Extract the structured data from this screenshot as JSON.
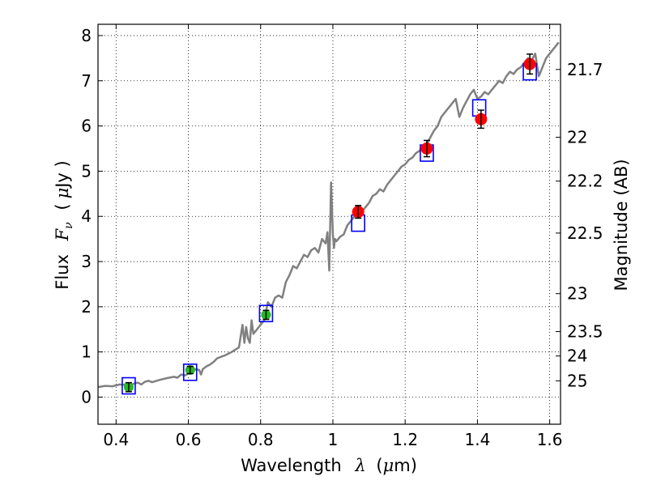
{
  "chart_data": {
    "type": "scatter",
    "xlabel": "Wavelength",
    "xlabel_symbol": "λ",
    "xlabel_unit_prefix": "(",
    "xlabel_unit_mu": "μ",
    "xlabel_unit_suffix": "m)",
    "ylabel": "Flux",
    "ylabel_symbol": "F",
    "ylabel_symbol_sub": "ν",
    "ylabel_unit_prefix": "(",
    "ylabel_unit_mu": "μ",
    "ylabel_unit_suffix": "Jy )",
    "y2label": "Magnitude (AB)",
    "xlim": [
      0.35,
      1.63
    ],
    "ylim": [
      -0.6,
      8.25
    ],
    "x_ticks": [
      0.4,
      0.6,
      0.8,
      1.0,
      1.2,
      1.4,
      1.6
    ],
    "x_tick_labels": [
      "0.4",
      "0.6",
      "0.8",
      "1",
      "1.2",
      "1.4",
      "1.6"
    ],
    "y_ticks": [
      0,
      1,
      2,
      3,
      4,
      5,
      6,
      7,
      8
    ],
    "y_tick_labels": [
      "0",
      "1",
      "2",
      "3",
      "4",
      "5",
      "6",
      "7",
      "8"
    ],
    "y2_ticks": [
      {
        "label": "21.7",
        "flux": 7.25
      },
      {
        "label": "22",
        "flux": 5.75
      },
      {
        "label": "22.2",
        "flux": 4.78
      },
      {
        "label": "22.5",
        "flux": 3.63
      },
      {
        "label": "23",
        "flux": 2.29
      },
      {
        "label": "23.5",
        "flux": 1.45
      },
      {
        "label": "24",
        "flux": 0.91
      },
      {
        "label": "25",
        "flux": 0.36
      }
    ],
    "grid": true,
    "colors": {
      "spectrum": "#808080",
      "model_box": "#0000ff",
      "optical_point": "#22bb22",
      "nir_point": "#ff0000",
      "errorbar": "#000000"
    },
    "series": [
      {
        "kind": "line",
        "x": [
          0.35,
          0.37,
          0.39,
          0.41,
          0.42,
          0.43,
          0.44,
          0.45,
          0.46,
          0.47,
          0.48,
          0.49,
          0.5,
          0.52,
          0.54,
          0.56,
          0.57,
          0.58,
          0.59,
          0.6,
          0.61,
          0.62,
          0.63,
          0.635,
          0.64,
          0.65,
          0.66,
          0.67,
          0.68,
          0.7,
          0.72,
          0.74,
          0.75,
          0.755,
          0.76,
          0.765,
          0.77,
          0.775,
          0.78,
          0.79,
          0.8,
          0.81,
          0.82,
          0.83,
          0.84,
          0.85,
          0.86,
          0.87,
          0.88,
          0.89,
          0.9,
          0.91,
          0.92,
          0.93,
          0.94,
          0.95,
          0.96,
          0.97,
          0.98,
          0.985,
          0.99,
          0.995,
          1.0,
          1.003,
          1.006,
          1.01,
          1.02,
          1.03,
          1.04,
          1.05,
          1.06,
          1.07,
          1.08,
          1.09,
          1.1,
          1.11,
          1.12,
          1.13,
          1.14,
          1.15,
          1.16,
          1.17,
          1.18,
          1.19,
          1.2,
          1.21,
          1.22,
          1.23,
          1.24,
          1.25,
          1.26,
          1.27,
          1.28,
          1.29,
          1.3,
          1.31,
          1.32,
          1.33,
          1.34,
          1.35,
          1.36,
          1.37,
          1.38,
          1.39,
          1.4,
          1.41,
          1.42,
          1.43,
          1.44,
          1.45,
          1.46,
          1.47,
          1.48,
          1.49,
          1.5,
          1.51,
          1.52,
          1.53,
          1.54,
          1.55,
          1.56,
          1.57,
          1.58,
          1.59,
          1.6,
          1.61,
          1.625
        ],
        "y": [
          0.22,
          0.25,
          0.24,
          0.28,
          0.27,
          0.3,
          0.26,
          0.3,
          0.32,
          0.28,
          0.34,
          0.36,
          0.33,
          0.38,
          0.42,
          0.45,
          0.43,
          0.5,
          0.48,
          0.52,
          0.55,
          0.62,
          0.6,
          0.5,
          0.62,
          0.68,
          0.72,
          0.78,
          0.86,
          0.92,
          1.0,
          1.1,
          1.6,
          1.2,
          1.55,
          1.3,
          1.2,
          1.7,
          1.4,
          1.5,
          1.6,
          1.7,
          2.1,
          2.0,
          2.2,
          2.25,
          2.2,
          2.55,
          2.7,
          2.9,
          2.85,
          3.0,
          3.15,
          3.1,
          3.25,
          3.3,
          3.2,
          3.5,
          3.4,
          3.65,
          2.8,
          4.75,
          3.6,
          3.3,
          3.5,
          3.45,
          3.55,
          3.6,
          3.8,
          3.9,
          4.0,
          4.05,
          4.1,
          4.2,
          4.3,
          4.45,
          4.5,
          4.6,
          4.55,
          4.7,
          4.8,
          4.9,
          5.0,
          5.1,
          5.15,
          5.25,
          5.3,
          5.4,
          5.45,
          5.55,
          5.6,
          5.75,
          5.9,
          6.0,
          6.2,
          6.3,
          6.4,
          6.5,
          6.6,
          6.2,
          6.4,
          6.55,
          6.7,
          6.8,
          6.6,
          6.65,
          6.75,
          6.7,
          6.8,
          6.9,
          7.0,
          6.95,
          7.1,
          7.2,
          7.15,
          7.25,
          7.3,
          7.4,
          7.5,
          7.45,
          7.6,
          7.1,
          7.3,
          7.5,
          7.6,
          7.7,
          7.85
        ]
      },
      {
        "kind": "box",
        "x": [
          0.435,
          0.605,
          0.815,
          1.07,
          1.26,
          1.405,
          1.545
        ],
        "y": [
          0.25,
          0.55,
          1.85,
          3.85,
          5.4,
          6.4,
          7.2
        ]
      },
      {
        "kind": "point",
        "group": "optical",
        "x": [
          0.435,
          0.605,
          0.815
        ],
        "y": [
          0.22,
          0.6,
          1.82
        ],
        "err": [
          0.1,
          0.08,
          0.1
        ]
      },
      {
        "kind": "point",
        "group": "nir",
        "x": [
          1.07,
          1.26,
          1.41,
          1.545
        ],
        "y": [
          4.1,
          5.5,
          6.15,
          7.37
        ],
        "err": [
          0.14,
          0.18,
          0.2,
          0.22
        ]
      }
    ]
  }
}
